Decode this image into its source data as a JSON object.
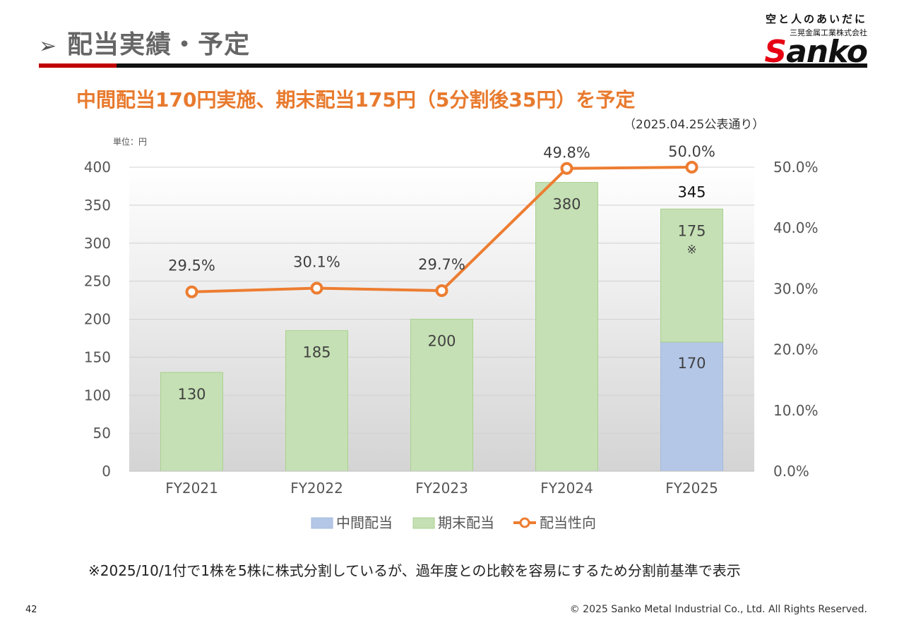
{
  "header": {
    "title": "配当実績・予定",
    "arrow": "➢",
    "logo_tagline": "空と人のあいだに",
    "logo_company": "三晃金属工業株式会社",
    "logo_word_s": "S",
    "logo_word_rest": "anko"
  },
  "headline": "中間配当170円実施、期末配当175円（5分割後35円）を予定",
  "announcement": "（2025.04.25公表通り）",
  "unit_label": "単位：円",
  "colors": {
    "interim": "#b4c7e7",
    "year_end": "#c5e0b4",
    "payout": "#ed7d31",
    "headline": "#e87a2e"
  },
  "chart_data": {
    "type": "bar",
    "stacked": true,
    "categories": [
      "FY2021",
      "FY2022",
      "FY2023",
      "FY2024",
      "FY2025"
    ],
    "series": [
      {
        "name": "中間配当",
        "values": [
          0,
          0,
          0,
          0,
          170
        ]
      },
      {
        "name": "期末配当",
        "values": [
          130,
          185,
          200,
          380,
          175
        ]
      }
    ],
    "line_series": {
      "name": "配当性向",
      "values": [
        29.5,
        30.1,
        29.7,
        49.8,
        50.0
      ]
    },
    "totals": [
      130,
      185,
      200,
      380,
      345
    ],
    "bar_labels": [
      "130",
      "185",
      "200",
      "380",
      "170",
      "175",
      "※",
      "345"
    ],
    "line_labels": [
      "29.5%",
      "30.1%",
      "29.7%",
      "49.8%",
      "50.0%"
    ],
    "ylim": [
      0,
      400
    ],
    "yticks": [
      "0",
      "50",
      "100",
      "150",
      "200",
      "250",
      "300",
      "350",
      "400"
    ],
    "y2lim": [
      0,
      50
    ],
    "y2ticks": [
      "0.0%",
      "10.0%",
      "20.0%",
      "30.0%",
      "40.0%",
      "50.0%"
    ],
    "legend": [
      "中間配当",
      "期末配当",
      "配当性向"
    ],
    "legend_position": "bottom"
  },
  "footnote": "※2025/10/1付で1株を5株に株式分割しているが、過年度との比較を容易にするため分割前基準で表示",
  "page_number": "42",
  "copyright": "© 2025 Sanko Metal Industrial Co., Ltd. All Rights Reserved."
}
